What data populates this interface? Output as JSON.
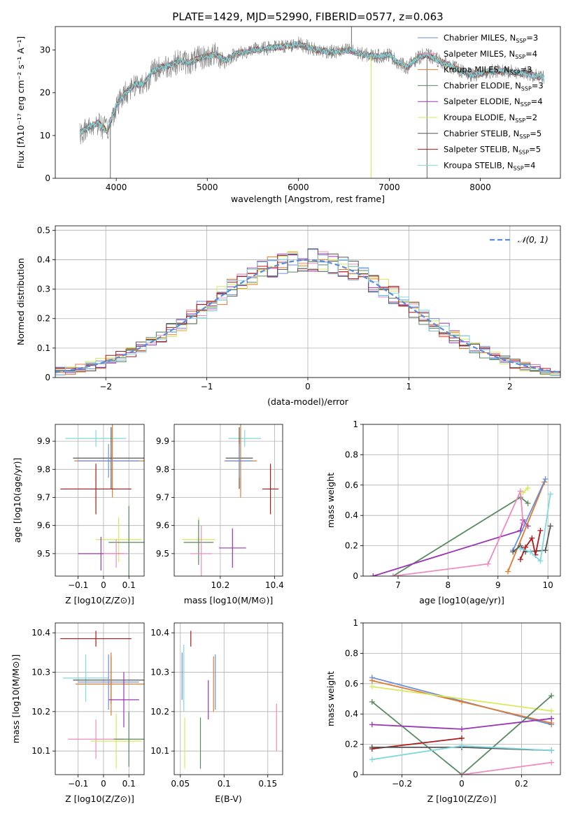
{
  "figure_title": "PLATE=1429, MJD=52990, FIBERID=0577, z=0.063",
  "colors": {
    "Chabrier MILES": "#6b8fd8",
    "Salpeter MILES": "#f08ac0",
    "Kroupa MILES": "#e07a30",
    "Chabrier ELODIE": "#5a8a60",
    "Salpeter ELODIE": "#9a35b5",
    "Kroupa ELODIE": "#d8e85a",
    "Chabrier STELIB": "#555555",
    "Salpeter STELIB": "#b01818",
    "Kroupa STELIB": "#80d8e0",
    "normal": "#5a8ad8"
  },
  "chart_data": [
    {
      "id": "spectrum",
      "type": "line",
      "title": "PLATE=1429, MJD=52990, FIBERID=0577, z=0.063",
      "xlabel": "wavelength [Angstrom, rest frame]",
      "ylabel": "Flux [fλ10⁻¹⁷ erg cm⁻² s⁻¹ A⁻¹]",
      "xlim": [
        3330,
        8880
      ],
      "ylim": [
        0,
        35.5
      ],
      "xticks": [
        4000,
        5000,
        6000,
        7000,
        8000
      ],
      "yticks": [
        0,
        10,
        20,
        30
      ],
      "grid": false,
      "legend_position": "right",
      "legend": [
        {
          "label": "Chabrier MILES, N_SSP=3",
          "key": "Chabrier MILES"
        },
        {
          "label": "Salpeter MILES, N_SSP=4",
          "key": "Salpeter MILES"
        },
        {
          "label": "Kroupa MILES, N_SSP=3",
          "key": "Kroupa MILES"
        },
        {
          "label": "Chabrier ELODIE, N_SSP=3",
          "key": "Chabrier ELODIE"
        },
        {
          "label": "Salpeter ELODIE, N_SSP=4",
          "key": "Salpeter ELODIE"
        },
        {
          "label": "Kroupa ELODIE, N_SSP=2",
          "key": "Kroupa ELODIE"
        },
        {
          "label": "Chabrier STELIB, N_SSP=5",
          "key": "Chabrier STELIB"
        },
        {
          "label": "Salpeter STELIB, N_SSP=5",
          "key": "Salpeter STELIB"
        },
        {
          "label": "Kroupa STELIB, N_SSP=4",
          "key": "Kroupa STELIB"
        }
      ],
      "continuum": [
        [
          3600,
          10.5
        ],
        [
          3700,
          12
        ],
        [
          3800,
          13
        ],
        [
          3900,
          11
        ],
        [
          3950,
          14
        ],
        [
          4000,
          17
        ],
        [
          4100,
          20
        ],
        [
          4200,
          22
        ],
        [
          4300,
          22
        ],
        [
          4400,
          25
        ],
        [
          4500,
          26
        ],
        [
          4600,
          26.5
        ],
        [
          4700,
          27.5
        ],
        [
          4800,
          27
        ],
        [
          4900,
          28
        ],
        [
          5000,
          28.5
        ],
        [
          5100,
          29
        ],
        [
          5200,
          27.5
        ],
        [
          5300,
          29
        ],
        [
          5500,
          30
        ],
        [
          5700,
          30.5
        ],
        [
          5900,
          31
        ],
        [
          6000,
          31.5
        ],
        [
          6200,
          30
        ],
        [
          6400,
          29.5
        ],
        [
          6560,
          30
        ],
        [
          6700,
          29
        ],
        [
          6900,
          28.5
        ],
        [
          7000,
          29
        ],
        [
          7100,
          27
        ],
        [
          7200,
          26
        ],
        [
          7300,
          28
        ],
        [
          7400,
          29
        ],
        [
          7500,
          28
        ],
        [
          7700,
          26
        ],
        [
          7900,
          24
        ],
        [
          8100,
          25
        ],
        [
          8300,
          25
        ],
        [
          8500,
          24.5
        ],
        [
          8700,
          23.5
        ]
      ],
      "spike_features": [
        {
          "x": 3935,
          "y": 0
        },
        {
          "x": 6585,
          "y": 35.5
        },
        {
          "x": 6800,
          "y": 0
        },
        {
          "x": 7415,
          "y": 0
        }
      ]
    },
    {
      "id": "residuals",
      "type": "line",
      "xlabel": "(data-model)/error",
      "ylabel": "Normed distribution",
      "xlim": [
        -2.5,
        2.5
      ],
      "ylim": [
        0,
        0.515
      ],
      "xticks": [
        -2,
        -1,
        0,
        1,
        2
      ],
      "yticks": [
        0.0,
        0.1,
        0.2,
        0.3,
        0.4,
        0.5
      ],
      "grid": true,
      "legend_position": "top-right",
      "legend": [
        {
          "label": "𝒩(0, 1)",
          "key": "normal"
        }
      ],
      "bin_width": 0.1,
      "hist_perturbation_note": "",
      "x_start": -2.5,
      "histograms_amplitude": [
        0.0,
        0.03,
        -0.02,
        0.04,
        -0.03,
        0.02,
        -0.01,
        0.03,
        -0.02
      ]
    },
    {
      "id": "age_vs_Z",
      "type": "scatter",
      "xlabel": "Z [log10(Z/Z⊙)]",
      "ylabel": "age  [log10(age/yr)]",
      "xlim": [
        -0.19,
        0.16
      ],
      "ylim": [
        9.42,
        9.96
      ],
      "xticks": [
        -0.1,
        0.0,
        0.1
      ],
      "yticks": [
        9.5,
        9.6,
        9.7,
        9.8,
        9.9
      ],
      "grid": true,
      "points": [
        {
          "key": "Kroupa STELIB",
          "x": -0.03,
          "y": 9.91,
          "xerr": 0.12,
          "yerr": 0.03
        },
        {
          "key": "Chabrier STELIB",
          "x": 0.03,
          "y": 9.84,
          "xerr": 0.15,
          "yerr": 0.11
        },
        {
          "key": "Kroupa MILES",
          "x": 0.035,
          "y": 9.83,
          "xerr": 0.15,
          "yerr": 0.13
        },
        {
          "key": "Chabrier MILES",
          "x": 0.02,
          "y": 9.83,
          "xerr": 0.12,
          "yerr": 0.06
        },
        {
          "key": "Salpeter STELIB",
          "x": -0.03,
          "y": 9.73,
          "xerr": 0.14,
          "yerr": 0.09
        },
        {
          "key": "Kroupa ELODIE",
          "x": 0.06,
          "y": 9.55,
          "xerr": 0.09,
          "yerr": 0.08
        },
        {
          "key": "Chabrier ELODIE",
          "x": 0.1,
          "y": 9.54,
          "xerr": 0.08,
          "yerr": 0.13
        },
        {
          "key": "Salpeter ELODIE",
          "x": -0.01,
          "y": 9.5,
          "xerr": 0.09,
          "yerr": 0.06
        },
        {
          "key": "Salpeter MILES",
          "x": 0.05,
          "y": 9.5,
          "xerr": 0.05,
          "yerr": 0.05
        }
      ]
    },
    {
      "id": "age_vs_mass",
      "type": "scatter",
      "xlabel": "mass [log10(M/M⊙)]",
      "ylabel": "",
      "xlim": [
        10.03,
        10.43
      ],
      "ylim": [
        9.42,
        9.96
      ],
      "xticks": [
        10.2,
        10.4
      ],
      "yticks": [
        9.5,
        9.6,
        9.7,
        9.8,
        9.9
      ],
      "grid": true,
      "points": [
        {
          "key": "Kroupa STELIB",
          "x": 10.29,
          "y": 9.91,
          "xerr": 0.06,
          "yerr": 0.03
        },
        {
          "key": "Chabrier STELIB",
          "x": 10.27,
          "y": 9.84,
          "xerr": 0.05,
          "yerr": 0.11
        },
        {
          "key": "Kroupa MILES",
          "x": 10.275,
          "y": 9.83,
          "xerr": 0.06,
          "yerr": 0.13
        },
        {
          "key": "Chabrier MILES",
          "x": 10.27,
          "y": 9.83,
          "xerr": 0.05,
          "yerr": 0.06
        },
        {
          "key": "Salpeter STELIB",
          "x": 10.385,
          "y": 9.73,
          "xerr": 0.03,
          "yerr": 0.09
        },
        {
          "key": "Kroupa ELODIE",
          "x": 10.12,
          "y": 9.55,
          "xerr": 0.06,
          "yerr": 0.08
        },
        {
          "key": "Chabrier ELODIE",
          "x": 10.12,
          "y": 9.54,
          "xerr": 0.055,
          "yerr": 0.08
        },
        {
          "key": "Salpeter ELODIE",
          "x": 10.245,
          "y": 9.52,
          "xerr": 0.05,
          "yerr": 0.07
        },
        {
          "key": "Salpeter MILES",
          "x": 10.13,
          "y": 9.5,
          "xerr": 0.04,
          "yerr": 0.1
        }
      ]
    },
    {
      "id": "weight_vs_age",
      "type": "line",
      "xlabel": "age  [log10(age/yr)]",
      "ylabel": "mass weight",
      "xlim": [
        6.3,
        10.25
      ],
      "ylim": [
        0,
        1
      ],
      "xticks": [
        7,
        8,
        9,
        10
      ],
      "yticks": [
        0.0,
        0.2,
        0.4,
        0.6,
        0.8,
        1.0
      ],
      "grid": true,
      "series": [
        {
          "key": "Chabrier ELODIE",
          "x": [
            6.9,
            9.45,
            9.6
          ],
          "y": [
            0.0,
            0.52,
            0.48
          ]
        },
        {
          "key": "Salpeter ELODIE",
          "x": [
            6.5,
            9.45,
            9.5,
            9.6
          ],
          "y": [
            0.0,
            0.3,
            0.37,
            0.33
          ]
        },
        {
          "key": "Salpeter MILES",
          "x": [
            6.9,
            8.8,
            9.45,
            9.5
          ],
          "y": [
            0.0,
            0.08,
            0.56,
            0.35
          ]
        },
        {
          "key": "Kroupa MILES",
          "x": [
            9.2,
            9.93
          ],
          "y": [
            0.03,
            0.62
          ]
        },
        {
          "key": "Chabrier MILES",
          "x": [
            9.3,
            9.95
          ],
          "y": [
            0.17,
            0.64
          ]
        },
        {
          "key": "Kroupa ELODIE",
          "x": [
            9.5,
            9.6
          ],
          "y": [
            0.55,
            0.58
          ]
        },
        {
          "key": "Chabrier STELIB",
          "x": [
            9.3,
            9.45,
            9.55,
            9.95,
            10.05
          ],
          "y": [
            0.16,
            0.2,
            0.16,
            0.17,
            0.33
          ]
        },
        {
          "key": "Salpeter STELIB",
          "x": [
            9.45,
            9.55,
            9.68,
            9.75,
            9.85
          ],
          "y": [
            0.11,
            0.19,
            0.25,
            0.14,
            0.3
          ]
        },
        {
          "key": "Kroupa STELIB",
          "x": [
            9.45,
            9.65,
            9.85,
            10.05
          ],
          "y": [
            0.18,
            0.16,
            0.1,
            0.54
          ]
        }
      ]
    },
    {
      "id": "mass_vs_Z",
      "type": "scatter",
      "xlabel": "Z [log10(Z/Z⊙)]",
      "ylabel": "mass [log10(M/M⊙)]",
      "xlim": [
        -0.19,
        0.16
      ],
      "ylim": [
        10.04,
        10.425
      ],
      "xticks": [
        -0.1,
        0.0,
        0.1
      ],
      "yticks": [
        10.1,
        10.2,
        10.3,
        10.4
      ],
      "grid": true,
      "points": [
        {
          "key": "Salpeter STELIB",
          "x": -0.03,
          "y": 10.385,
          "xerr": 0.14,
          "yerr": 0.02
        },
        {
          "key": "Kroupa STELIB",
          "x": -0.07,
          "y": 10.285,
          "xerr": 0.09,
          "yerr": 0.06
        },
        {
          "key": "Chabrier STELIB",
          "x": 0.03,
          "y": 10.28,
          "xerr": 0.15,
          "yerr": 0.06
        },
        {
          "key": "Chabrier MILES",
          "x": 0.02,
          "y": 10.275,
          "xerr": 0.12,
          "yerr": 0.07
        },
        {
          "key": "Kroupa MILES",
          "x": 0.03,
          "y": 10.27,
          "xerr": 0.14,
          "yerr": 0.08
        },
        {
          "key": "Salpeter ELODIE",
          "x": 0.08,
          "y": 10.23,
          "xerr": 0.06,
          "yerr": 0.07
        },
        {
          "key": "Salpeter MILES",
          "x": -0.03,
          "y": 10.13,
          "xerr": 0.11,
          "yerr": 0.05
        },
        {
          "key": "Kroupa ELODIE",
          "x": 0.05,
          "y": 10.125,
          "xerr": 0.1,
          "yerr": 0.07
        },
        {
          "key": "Chabrier ELODIE",
          "x": 0.1,
          "y": 10.13,
          "xerr": 0.06,
          "yerr": 0.07
        }
      ]
    },
    {
      "id": "mass_vs_ebv",
      "type": "scatter",
      "xlabel": "E(B-V)",
      "ylabel": "",
      "xlim": [
        0.043,
        0.167
      ],
      "ylim": [
        10.04,
        10.425
      ],
      "xticks": [
        0.05,
        0.1,
        0.15
      ],
      "yticks": [
        10.1,
        10.2,
        10.3,
        10.4
      ],
      "grid": true,
      "points": [
        {
          "key": "Chabrier MILES",
          "x": 0.052,
          "y": 10.29,
          "yerr": 0.06
        },
        {
          "key": "Kroupa STELIB",
          "x": 0.054,
          "y": 10.285,
          "yerr": 0.085
        },
        {
          "key": "Kroupa ELODIE",
          "x": 0.055,
          "y": 10.12,
          "yerr": 0.065
        },
        {
          "key": "Salpeter STELIB",
          "x": 0.062,
          "y": 10.385,
          "yerr": 0.02
        },
        {
          "key": "Chabrier ELODIE",
          "x": 0.073,
          "y": 10.12,
          "yerr": 0.065
        },
        {
          "key": "Salpeter ELODIE",
          "x": 0.082,
          "y": 10.23,
          "yerr": 0.05
        },
        {
          "key": "Kroupa MILES",
          "x": 0.088,
          "y": 10.27,
          "yerr": 0.07
        },
        {
          "key": "Chabrier MILES",
          "x": 0.09,
          "y": 10.275,
          "yerr": 0.07
        },
        {
          "key": "Salpeter MILES",
          "x": 0.16,
          "y": 10.16,
          "yerr": 0.06
        }
      ]
    },
    {
      "id": "weight_vs_Z",
      "type": "line",
      "xlabel": "Z [log10(Z/Z⊙)]",
      "ylabel": "mass weight",
      "xlim": [
        -0.33,
        0.33
      ],
      "ylim": [
        0,
        1
      ],
      "xticks": [
        -0.2,
        0.0,
        0.2
      ],
      "yticks": [
        0.0,
        0.2,
        0.4,
        0.6,
        0.8,
        1.0
      ],
      "grid": true,
      "series": [
        {
          "key": "Chabrier MILES",
          "x": [
            -0.3,
            0.3
          ],
          "y": [
            0.64,
            0.33
          ]
        },
        {
          "key": "Kroupa MILES",
          "x": [
            -0.3,
            0.0,
            0.3
          ],
          "y": [
            0.62,
            0.48,
            0.34
          ]
        },
        {
          "key": "Kroupa ELODIE",
          "x": [
            -0.3,
            0.3
          ],
          "y": [
            0.58,
            0.42
          ]
        },
        {
          "key": "Chabrier ELODIE",
          "x": [
            -0.3,
            0.0,
            0.3
          ],
          "y": [
            0.48,
            0.0,
            0.52
          ]
        },
        {
          "key": "Salpeter ELODIE",
          "x": [
            -0.3,
            0.0,
            0.3
          ],
          "y": [
            0.33,
            0.3,
            0.37
          ]
        },
        {
          "key": "Salpeter MILES",
          "x": [
            0.0,
            0.3
          ],
          "y": [
            0.0,
            0.08
          ]
        },
        {
          "key": "Salpeter STELIB",
          "x": [
            -0.3,
            0.0
          ],
          "y": [
            0.17,
            0.24
          ]
        },
        {
          "key": "Chabrier STELIB",
          "x": [
            -0.3,
            0.0,
            0.3
          ],
          "y": [
            0.18,
            0.18,
            0.16
          ]
        },
        {
          "key": "Kroupa STELIB",
          "x": [
            -0.3,
            0.0,
            0.3
          ],
          "y": [
            0.1,
            0.19,
            0.16
          ]
        }
      ]
    }
  ]
}
